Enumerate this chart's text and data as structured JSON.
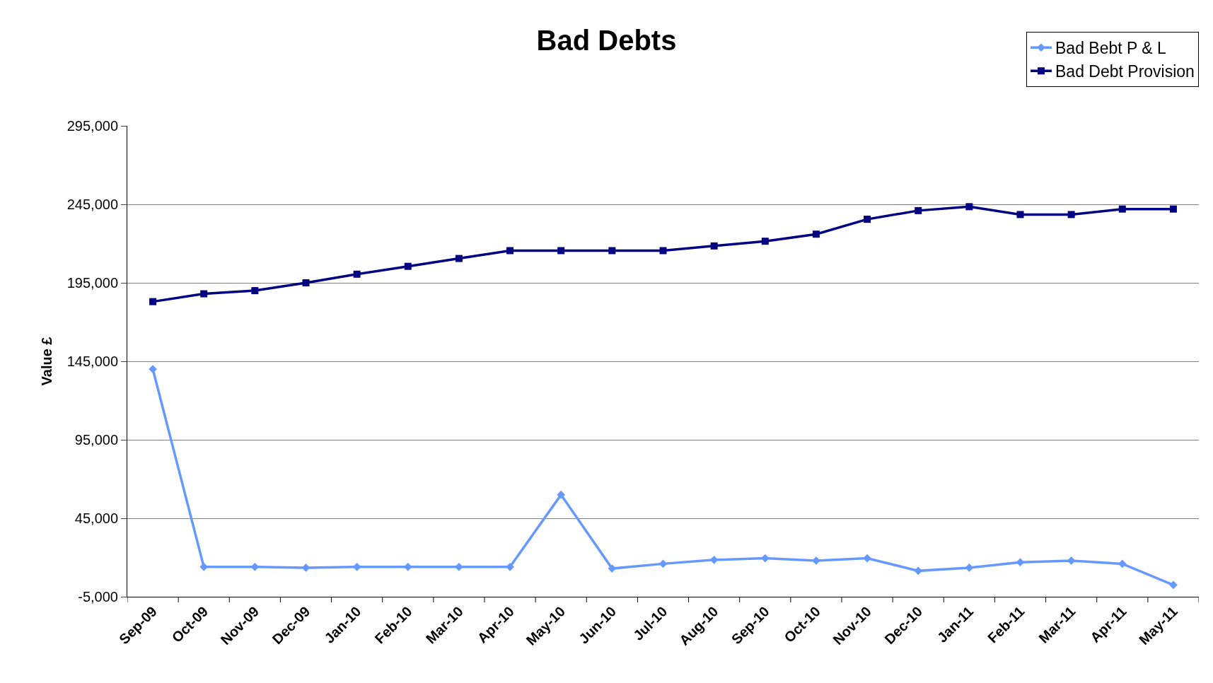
{
  "chart_data": {
    "type": "line",
    "title": "Bad Debts",
    "ylabel": "Value £",
    "categories": [
      "Sep-09",
      "Oct-09",
      "Nov-09",
      "Dec-09",
      "Jan-10",
      "Feb-10",
      "Mar-10",
      "Apr-10",
      "May-10",
      "Jun-10",
      "Jul-10",
      "Aug-10",
      "Sep-10",
      "Oct-10",
      "Nov-10",
      "Dec-10",
      "Jan-11",
      "Feb-11",
      "Mar-11",
      "Apr-11",
      "May-11"
    ],
    "series": [
      {
        "name": "Bad Bebt P & L",
        "color": "#6699ff",
        "marker": "diamond",
        "values": [
          140000,
          14000,
          14000,
          13500,
          14000,
          14000,
          14000,
          14000,
          60000,
          13000,
          16000,
          18500,
          19500,
          18000,
          19500,
          11500,
          13500,
          17000,
          18000,
          16000,
          2500
        ]
      },
      {
        "name": "Bad Debt Provision",
        "color": "#000080",
        "marker": "square",
        "values": [
          183000,
          188000,
          190000,
          195000,
          200500,
          205500,
          210500,
          215500,
          215500,
          215500,
          215500,
          218500,
          221500,
          226000,
          235500,
          241000,
          243500,
          238500,
          238500,
          242000,
          242000
        ]
      }
    ],
    "ylim": [
      -5000,
      295000
    ],
    "yticks": [
      {
        "value": -5000,
        "label": "-5,000"
      },
      {
        "value": 45000,
        "label": "45,000"
      },
      {
        "value": 95000,
        "label": "95,000"
      },
      {
        "value": 145000,
        "label": "145,000"
      },
      {
        "value": 195000,
        "label": "195,000"
      },
      {
        "value": 245000,
        "label": "245,000"
      },
      {
        "value": 295000,
        "label": "295,000"
      }
    ],
    "grid": "y",
    "legend": "top right",
    "line_style": "solid"
  }
}
